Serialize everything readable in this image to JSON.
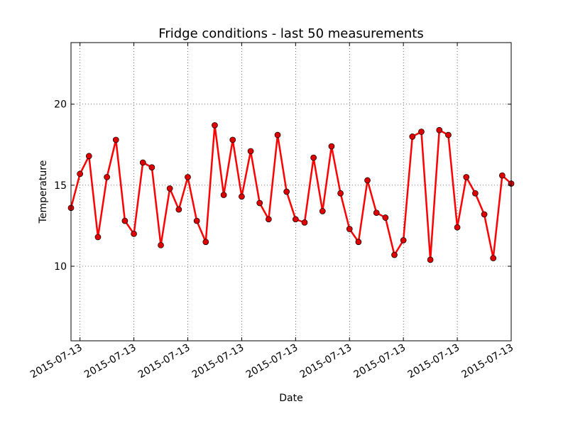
{
  "chart_data": {
    "type": "line",
    "title": "Fridge conditions - last 50 measurements",
    "xlabel": "Date",
    "ylabel": "Temperature",
    "ylim": [
      5.4,
      23.8
    ],
    "ytick_labels": [
      "10",
      "15",
      "20"
    ],
    "ytick_values": [
      10,
      15,
      20
    ],
    "xtick_labels": [
      "2015-07-13",
      "2015-07-13",
      "2015-07-13",
      "2015-07-13",
      "2015-07-13",
      "2015-07-13",
      "2015-07-13",
      "2015-07-13",
      "2015-07-13"
    ],
    "grid": true,
    "line_color": "#ff0000",
    "marker_color": "#dd0000",
    "series": [
      {
        "values": [
          13.6,
          15.7,
          16.8,
          11.8,
          15.5,
          17.8,
          12.8,
          12.0,
          16.4,
          16.1,
          11.3,
          14.8,
          13.5,
          15.5,
          12.8,
          11.5,
          18.7,
          14.4,
          17.8,
          14.3,
          17.1,
          13.9,
          12.9,
          18.1,
          14.6,
          12.9,
          12.7,
          16.7,
          13.4,
          17.4,
          14.5,
          12.3,
          11.5,
          15.3,
          13.3,
          13.0,
          10.7,
          11.6,
          18.0,
          18.3,
          10.4,
          18.4,
          18.1,
          12.4,
          15.5,
          14.5,
          13.2,
          10.5,
          15.6,
          15.1
        ]
      }
    ]
  }
}
